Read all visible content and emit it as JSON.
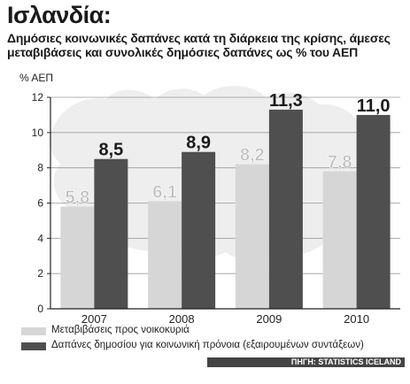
{
  "title": "Ισλανδία:",
  "subtitle": "Δημόσιες κοινωνικές δαπάνες κατά τη διάρκεια της κρίσης, άμεσες μεταβιβάσεις και συνολικές δημόσιες δαπάνες ως % του ΑΕΠ",
  "source": "ΠΗΓΗ: STATISTICS ICELAND",
  "colors": {
    "series_light": "#d6d6d6",
    "series_dark": "#4f4f4f",
    "background": "#ffffff",
    "map_shape": "#eeeeee"
  },
  "legend": [
    {
      "label": "Μεταβιβάσεις προς νοικοκυριά",
      "color": "#d6d6d6"
    },
    {
      "label": "Δαπάνες δημοσίου για κοινωνική πρόνοια (εξαιρουμένων συντάξεων)",
      "color": "#4f4f4f"
    }
  ],
  "chart_data": {
    "type": "bar",
    "title": "Ισλανδία:",
    "ylabel": "% ΑΕΠ",
    "ylim": [
      0,
      12
    ],
    "yticks": [
      0,
      2,
      4,
      6,
      8,
      10,
      12
    ],
    "grid": true,
    "categories": [
      "2007",
      "2008",
      "2009",
      "2010"
    ],
    "series": [
      {
        "name": "Μεταβιβάσεις προς νοικοκυριά",
        "values": [
          5.8,
          6.1,
          8.2,
          7.8
        ],
        "labels": [
          "5,8",
          "6,1",
          "8,2",
          "7,8"
        ]
      },
      {
        "name": "Δαπάνες δημοσίου για κοινωνική πρόνοια (εξαιρουμένων συντάξεων)",
        "values": [
          8.5,
          8.9,
          11.3,
          11.0
        ],
        "labels": [
          "8,5",
          "8,9",
          "11,3",
          "11,0"
        ]
      }
    ]
  }
}
